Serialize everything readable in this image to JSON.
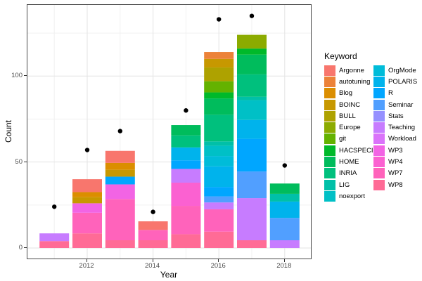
{
  "legend": {
    "title": "Keyword",
    "position": "right"
  },
  "axes": {
    "x_title": "Year",
    "y_title": "Count",
    "y_tick_labels": [
      "0",
      "50",
      "100"
    ],
    "x_tick_labels": [
      "2012",
      "2014",
      "2016",
      "2018"
    ]
  },
  "chart_data": {
    "type": "bar",
    "stacked": true,
    "title": "",
    "xlabel": "Year",
    "ylabel": "Count",
    "legend_title": "Keyword",
    "x": [
      2011,
      2012,
      2013,
      2014,
      2015,
      2016,
      2017,
      2018
    ],
    "ylim": [
      0,
      141
    ],
    "yticks_major": [
      0,
      50,
      100
    ],
    "yticks_minor": [
      25,
      75,
      125
    ],
    "xticks_major": [
      2012,
      2014,
      2016,
      2018
    ],
    "xticks_minor": [
      2011,
      2013,
      2015,
      2017
    ],
    "grid": true,
    "keywords": [
      {
        "name": "Argonne",
        "color": "#F8766D"
      },
      {
        "name": "autotuning",
        "color": "#EC8239"
      },
      {
        "name": "Blog",
        "color": "#DB8E00"
      },
      {
        "name": "BOINC",
        "color": "#C79800"
      },
      {
        "name": "BULL",
        "color": "#AEA200"
      },
      {
        "name": "Europe",
        "color": "#8CAB00"
      },
      {
        "name": "git",
        "color": "#64B200"
      },
      {
        "name": "HACSPECIS",
        "color": "#00B92A"
      },
      {
        "name": "HOME",
        "color": "#00BC5C"
      },
      {
        "name": "INRIA",
        "color": "#00C07D"
      },
      {
        "name": "LIG",
        "color": "#00C0A8"
      },
      {
        "name": "noexport",
        "color": "#00C0C6"
      },
      {
        "name": "OrgMode",
        "color": "#00BCD9"
      },
      {
        "name": "POLARIS",
        "color": "#00B3EC"
      },
      {
        "name": "R",
        "color": "#00A6FF"
      },
      {
        "name": "Seminar",
        "color": "#519FFF"
      },
      {
        "name": "Stats",
        "color": "#9590FF"
      },
      {
        "name": "Teaching",
        "color": "#C77CFF"
      },
      {
        "name": "Workload",
        "color": "#DA73FA"
      },
      {
        "name": "WP3",
        "color": "#F264E4"
      },
      {
        "name": "WP4",
        "color": "#FB61D1"
      },
      {
        "name": "WP7",
        "color": "#FF63BB"
      },
      {
        "name": "WP8",
        "color": "#FF6B96"
      }
    ],
    "bars": [
      {
        "year": 2011,
        "total": 8.5,
        "segments": [
          {
            "keyword": "WP8",
            "value": 4
          },
          {
            "keyword": "Teaching",
            "value": 4.5
          }
        ]
      },
      {
        "year": 2012,
        "total": 40,
        "segments": [
          {
            "keyword": "WP8",
            "value": 8.5
          },
          {
            "keyword": "WP7",
            "value": 12
          },
          {
            "keyword": "WP3",
            "value": 5.5
          },
          {
            "keyword": "BOINC",
            "value": 3.5
          },
          {
            "keyword": "Blog",
            "value": 3
          },
          {
            "keyword": "Argonne",
            "value": 7.5
          }
        ]
      },
      {
        "year": 2013,
        "total": 56.5,
        "segments": [
          {
            "keyword": "WP8",
            "value": 4.5
          },
          {
            "keyword": "WP7",
            "value": 24
          },
          {
            "keyword": "WP3",
            "value": 8.5
          },
          {
            "keyword": "R",
            "value": 4.5
          },
          {
            "keyword": "BOINC",
            "value": 4
          },
          {
            "keyword": "Blog",
            "value": 4
          },
          {
            "keyword": "Argonne",
            "value": 7
          }
        ]
      },
      {
        "year": 2014,
        "total": 15.5,
        "segments": [
          {
            "keyword": "WP8",
            "value": 4.5
          },
          {
            "keyword": "WP7",
            "value": 6
          },
          {
            "keyword": "Argonne",
            "value": 5
          }
        ]
      },
      {
        "year": 2015,
        "total": 71.5,
        "segments": [
          {
            "keyword": "WP8",
            "value": 8
          },
          {
            "keyword": "WP7",
            "value": 16.5
          },
          {
            "keyword": "WP4",
            "value": 13.5
          },
          {
            "keyword": "Teaching",
            "value": 8
          },
          {
            "keyword": "R",
            "value": 5
          },
          {
            "keyword": "POLARIS",
            "value": 7.5
          },
          {
            "keyword": "INRIA",
            "value": 7
          },
          {
            "keyword": "HOME",
            "value": 6
          }
        ]
      },
      {
        "year": 2016,
        "total": 114,
        "segments": [
          {
            "keyword": "WP8",
            "value": 9.5
          },
          {
            "keyword": "WP7",
            "value": 13
          },
          {
            "keyword": "Teaching",
            "value": 4
          },
          {
            "keyword": "Seminar",
            "value": 3.5
          },
          {
            "keyword": "R",
            "value": 5.5
          },
          {
            "keyword": "POLARIS",
            "value": 12
          },
          {
            "keyword": "OrgMode",
            "value": 6
          },
          {
            "keyword": "noexport",
            "value": 6
          },
          {
            "keyword": "LIG",
            "value": 2.5
          },
          {
            "keyword": "INRIA",
            "value": 15.5
          },
          {
            "keyword": "HOME",
            "value": 9.5
          },
          {
            "keyword": "HACSPECIS",
            "value": 3.5
          },
          {
            "keyword": "git",
            "value": 6.5
          },
          {
            "keyword": "BULL",
            "value": 8
          },
          {
            "keyword": "BOINC",
            "value": 5
          },
          {
            "keyword": "autotuning",
            "value": 4
          }
        ]
      },
      {
        "year": 2017,
        "total": 124,
        "segments": [
          {
            "keyword": "WP8",
            "value": 4.5
          },
          {
            "keyword": "Teaching",
            "value": 24.5
          },
          {
            "keyword": "Seminar",
            "value": 15.5
          },
          {
            "keyword": "R",
            "value": 19
          },
          {
            "keyword": "POLARIS",
            "value": 11
          },
          {
            "keyword": "noexport",
            "value": 11.5
          },
          {
            "keyword": "LIG",
            "value": 2
          },
          {
            "keyword": "INRIA",
            "value": 13
          },
          {
            "keyword": "HOME",
            "value": 11.5
          },
          {
            "keyword": "HACSPECIS",
            "value": 3.5
          },
          {
            "keyword": "Europe",
            "value": 8
          }
        ]
      },
      {
        "year": 2018,
        "total": 37.5,
        "segments": [
          {
            "keyword": "Teaching",
            "value": 4.5
          },
          {
            "keyword": "Seminar",
            "value": 13
          },
          {
            "keyword": "POLARIS",
            "value": 9.5
          },
          {
            "keyword": "LIG",
            "value": 4.5
          },
          {
            "keyword": "HOME",
            "value": 6
          }
        ]
      }
    ],
    "points": {
      "shape": "circle",
      "color": "#000000",
      "values": [
        {
          "year": 2011,
          "value": 24
        },
        {
          "year": 2012,
          "value": 57
        },
        {
          "year": 2013,
          "value": 68
        },
        {
          "year": 2014,
          "value": 21
        },
        {
          "year": 2015,
          "value": 80
        },
        {
          "year": 2016,
          "value": 133
        },
        {
          "year": 2017,
          "value": 135
        },
        {
          "year": 2018,
          "value": 48
        }
      ]
    }
  }
}
